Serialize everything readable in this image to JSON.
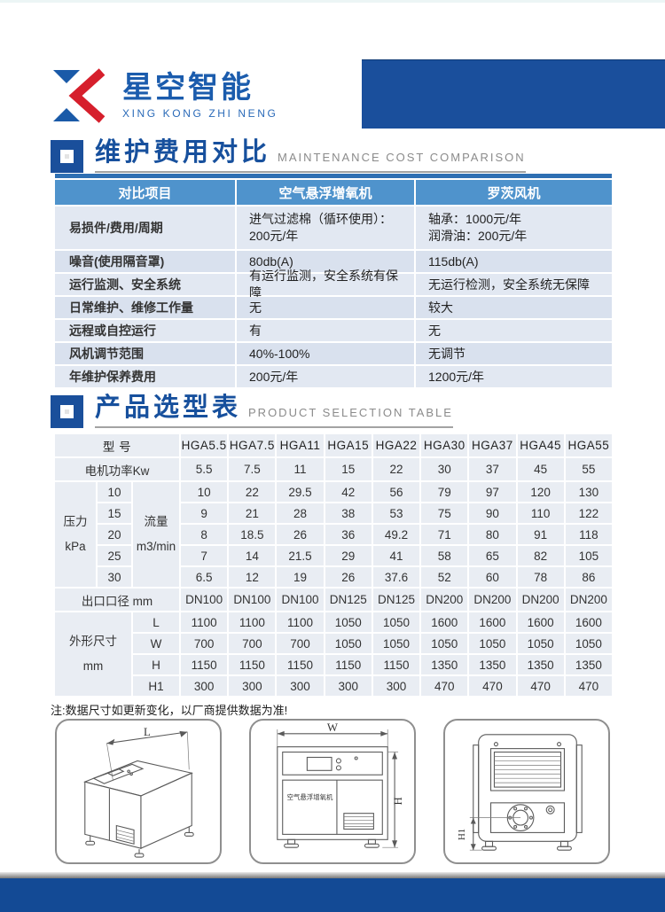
{
  "logo": {
    "name": "星空智能",
    "subtitle": "XING KONG ZHI NENG"
  },
  "section1": {
    "title": "维护费用对比",
    "subtitle": "MAINTENANCE COST COMPARISON"
  },
  "comparison_table": {
    "headers": [
      "对比项目",
      "空气悬浮增氧机",
      "罗茨风机"
    ],
    "rows": [
      [
        "易损件/费用/周期",
        "进气过滤棉（循环使用）：\n200元/年",
        "轴承：1000元/年\n润滑油：200元/年"
      ],
      [
        "噪音(使用隔音罩)",
        "80db(A)",
        "115db(A)"
      ],
      [
        "运行监测、安全系统",
        "有运行监测，安全系统有保障",
        "无运行检测，安全系统无保障"
      ],
      [
        "日常维护、维修工作量",
        "无",
        "较大"
      ],
      [
        "远程或自控运行",
        "有",
        "无"
      ],
      [
        "风机调节范围",
        "40%-100%",
        "无调节"
      ],
      [
        "年维护保养费用",
        "200元/年",
        "1200元/年"
      ]
    ]
  },
  "section2": {
    "title": "产品选型表",
    "subtitle": "PRODUCT SELECTION TABLE"
  },
  "selection_table": {
    "model_label": "型  号",
    "models": [
      "HGA5.5",
      "HGA7.5",
      "HGA11",
      "HGA15",
      "HGA22",
      "HGA30",
      "HGA37",
      "HGA45",
      "HGA55"
    ],
    "power_label": "电机功率Kw",
    "power_values": [
      "5.5",
      "7.5",
      "11",
      "15",
      "22",
      "30",
      "37",
      "45",
      "55"
    ],
    "pressure_label": "压力",
    "pressure_unit": "kPa",
    "flow_label": "流量",
    "flow_unit": "m3/min",
    "flow_rows": [
      {
        "pressure": "10",
        "values": [
          "10",
          "22",
          "29.5",
          "42",
          "56",
          "79",
          "97",
          "120",
          "130"
        ]
      },
      {
        "pressure": "15",
        "values": [
          "9",
          "21",
          "28",
          "38",
          "53",
          "75",
          "90",
          "110",
          "122"
        ]
      },
      {
        "pressure": "20",
        "values": [
          "8",
          "18.5",
          "26",
          "36",
          "49.2",
          "71",
          "80",
          "91",
          "118"
        ]
      },
      {
        "pressure": "25",
        "values": [
          "7",
          "14",
          "21.5",
          "29",
          "41",
          "58",
          "65",
          "82",
          "105"
        ]
      },
      {
        "pressure": "30",
        "values": [
          "6.5",
          "12",
          "19",
          "26",
          "37.6",
          "52",
          "60",
          "78",
          "86"
        ]
      }
    ],
    "outlet_label": "出口口径 mm",
    "outlet_values": [
      "DN100",
      "DN100",
      "DN100",
      "DN125",
      "DN125",
      "DN200",
      "DN200",
      "DN200",
      "DN200"
    ],
    "dims_label": "外形尺寸",
    "dims_unit": "mm",
    "dim_rows": [
      {
        "name": "L",
        "values": [
          "1100",
          "1100",
          "1100",
          "1050",
          "1050",
          "1600",
          "1600",
          "1600",
          "1600"
        ]
      },
      {
        "name": "W",
        "values": [
          "700",
          "700",
          "700",
          "1050",
          "1050",
          "1050",
          "1050",
          "1050",
          "1050"
        ]
      },
      {
        "name": "H",
        "values": [
          "1150",
          "1150",
          "1150",
          "1150",
          "1150",
          "1350",
          "1350",
          "1350",
          "1350"
        ]
      },
      {
        "name": "H1",
        "values": [
          "300",
          "300",
          "300",
          "300",
          "300",
          "470",
          "470",
          "470",
          "470"
        ]
      }
    ]
  },
  "note": "注:数据尺寸如更新变化，以厂商提供数据为准!",
  "drawings": {
    "iso_dim": "L",
    "front_dim_w": "W",
    "front_dim_h": "H",
    "rear_dim_h1": "H1",
    "front_panel_text": "空气悬浮增氧机"
  },
  "colors": {
    "brand_blue": "#1a4f9c",
    "brand_red": "#d61f2c",
    "table_header_blue": "#4f93cc",
    "footer_blue": "#134a95"
  }
}
